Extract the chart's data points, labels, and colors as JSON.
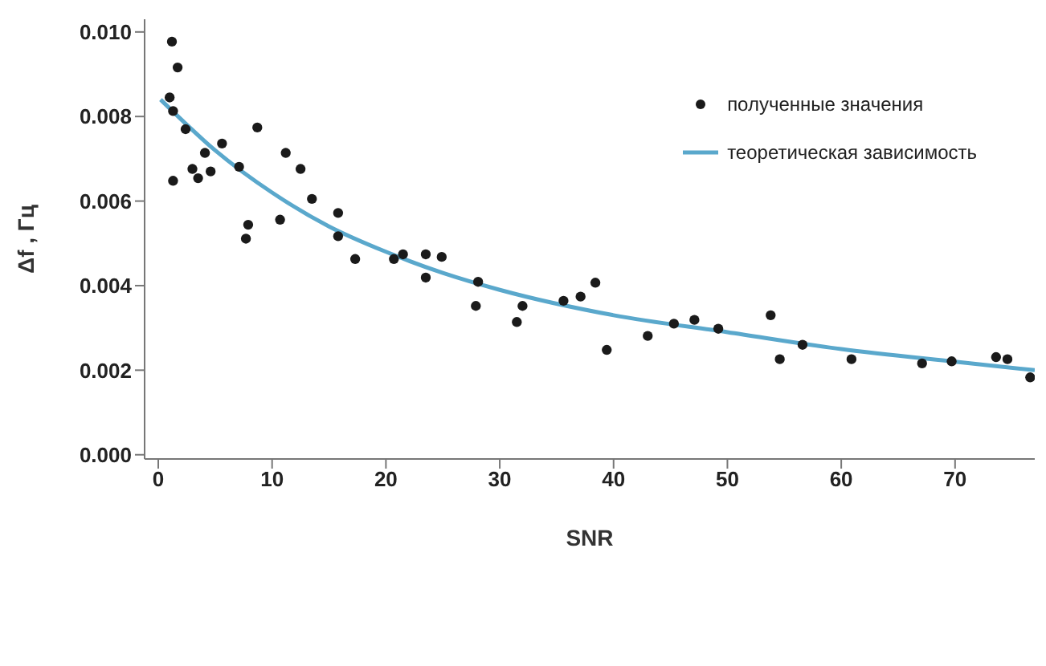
{
  "chart_data": {
    "type": "scatter",
    "xlabel": "SNR",
    "ylabel": "Δf , Гц",
    "xlim": [
      -1.2,
      77
    ],
    "ylim": [
      -0.0001,
      0.0103
    ],
    "xticks": [
      0,
      10,
      20,
      30,
      40,
      50,
      60,
      70
    ],
    "yticks": [
      {
        "value": 0,
        "label": "0.000"
      },
      {
        "value": 0.002,
        "label": "0.002"
      },
      {
        "value": 0.004,
        "label": "0.004"
      },
      {
        "value": 0.006,
        "label": "0.006"
      },
      {
        "value": 0.008,
        "label": "0.008"
      },
      {
        "value": 0.01,
        "label": "0.010"
      }
    ],
    "grid": false,
    "legend": "top right",
    "series": [
      {
        "name": "полученные значения",
        "color": "#1a1a1a",
        "marker": "circle",
        "x": [
          1.2,
          1.7,
          1.0,
          1.3,
          1.3,
          2.4,
          3.0,
          3.5,
          4.1,
          4.6,
          5.6,
          7.1,
          7.7,
          7.9,
          8.7,
          10.7,
          11.2,
          12.5,
          13.5,
          15.8,
          15.8,
          17.3,
          20.7,
          21.5,
          23.5,
          23.5,
          24.9,
          28.1,
          27.9,
          31.5,
          32.0,
          35.6,
          37.1,
          38.4,
          39.4,
          43.0,
          45.3,
          47.1,
          49.2,
          53.8,
          54.6,
          56.6,
          60.9,
          67.1,
          69.7,
          73.6,
          74.6,
          76.6
        ],
        "values": [
          0.00977,
          0.00916,
          0.00845,
          0.00813,
          0.00648,
          0.0077,
          0.00676,
          0.00654,
          0.00714,
          0.0067,
          0.00736,
          0.00681,
          0.00511,
          0.00544,
          0.00774,
          0.00556,
          0.00714,
          0.00676,
          0.00605,
          0.00572,
          0.00517,
          0.00463,
          0.00463,
          0.00474,
          0.00474,
          0.00419,
          0.00468,
          0.00409,
          0.00352,
          0.00314,
          0.00352,
          0.00364,
          0.00374,
          0.00407,
          0.00248,
          0.00281,
          0.0031,
          0.00319,
          0.00298,
          0.0033,
          0.00226,
          0.0026,
          0.00226,
          0.00216,
          0.00221,
          0.00231,
          0.00226,
          0.00183
        ]
      },
      {
        "name": "теоретическая зависимость",
        "type": "line",
        "color": "#5aa8cc",
        "marker": "none",
        "line_style": "solid",
        "x": [
          0.2,
          5,
          10,
          15,
          20,
          25,
          30,
          40,
          50,
          60,
          70,
          77
        ],
        "values": [
          0.0084,
          0.0072,
          0.0062,
          0.0054,
          0.0048,
          0.0043,
          0.0039,
          0.0033,
          0.0029,
          0.0025,
          0.0022,
          0.002
        ]
      }
    ]
  }
}
